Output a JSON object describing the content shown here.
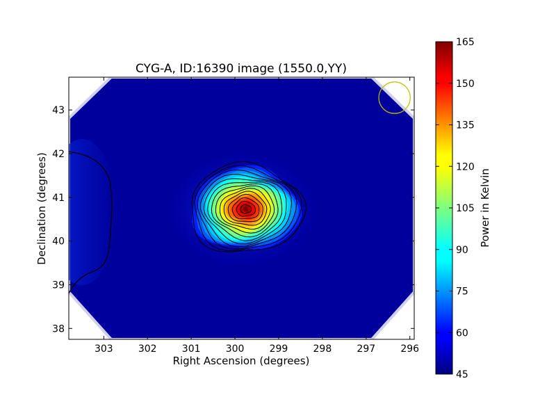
{
  "chart_data": {
    "type": "heatmap",
    "title": "CYG-A, ID:16390 image (1550.0,YY)",
    "xlabel": "Right Ascension (degrees)",
    "ylabel": "Declination (degrees)",
    "x_axis_inverted": true,
    "xlim": [
      303.8,
      295.9
    ],
    "ylim": [
      37.75,
      43.75
    ],
    "x_ticks": [
      "303",
      "302",
      "301",
      "300",
      "299",
      "298",
      "297",
      "296"
    ],
    "y_ticks": [
      "38",
      "39",
      "40",
      "41",
      "42",
      "43"
    ],
    "source_peak": {
      "ra": 299.8,
      "dec": 40.7,
      "value": 165
    },
    "background_value": 50,
    "beam_circle": {
      "ra": 296.35,
      "dec": 43.28,
      "radius_deg": 0.36
    },
    "colorbar": {
      "label": "Power in Kelvin",
      "range": [
        45,
        165
      ],
      "ticks": [
        "45",
        "60",
        "75",
        "90",
        "105",
        "120",
        "135",
        "150",
        "165"
      ],
      "colormap": "jet"
    },
    "colors": {
      "background_navy": "#00009c",
      "beam_circle": "#bfbf00",
      "contour": "#000000"
    }
  }
}
